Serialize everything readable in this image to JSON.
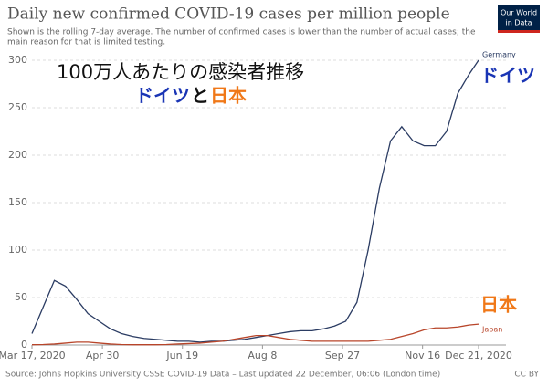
{
  "chart_data": {
    "type": "line",
    "title": "Daily new confirmed COVID-19 cases per million people",
    "subtitle": [
      "Shown is the rolling 7-day average. The number of confirmed cases is lower than the number of actual cases; the",
      "main reason for that is limited testing."
    ],
    "logo": [
      "Our World",
      "in Data"
    ],
    "source": "Source: Johns Hopkins University CSSE COVID-19 Data – Last updated 22 December, 06:06 (London time)",
    "license": "CC BY",
    "annotation_title": "100万人あたりの感染者推移",
    "annotation_subtitle": [
      {
        "text": "ドイツ",
        "color": "#1a35b5"
      },
      {
        "text": "と",
        "color": "#111111"
      },
      {
        "text": "日本",
        "color": "#f07818"
      }
    ],
    "x": [
      0,
      7,
      14,
      21,
      28,
      35,
      42,
      49,
      56,
      63,
      70,
      77,
      84,
      91,
      98,
      105,
      112,
      119,
      126,
      133,
      140,
      147,
      154,
      161,
      168,
      175,
      182,
      189,
      196,
      203,
      210,
      217,
      224,
      231,
      238,
      245,
      252,
      259,
      266,
      273,
      279
    ],
    "xlim": [
      0,
      279
    ],
    "xticks": [
      {
        "value": 0,
        "label": "Mar 17, 2020"
      },
      {
        "value": 44,
        "label": "Apr 30"
      },
      {
        "value": 94,
        "label": "Jun 19"
      },
      {
        "value": 144,
        "label": "Aug 8"
      },
      {
        "value": 194,
        "label": "Sep 27"
      },
      {
        "value": 244,
        "label": "Nov 16"
      },
      {
        "value": 279,
        "label": "Dec 21, 2020"
      }
    ],
    "ylim": [
      0,
      300
    ],
    "yticks": [
      0,
      50,
      100,
      150,
      200,
      250,
      300
    ],
    "grid": true,
    "series": [
      {
        "name": "Germany",
        "note": "ドイツ",
        "color": "#2b3c63",
        "note_color": "#1a35b5",
        "values": [
          12,
          40,
          68,
          62,
          48,
          33,
          25,
          17,
          12,
          9,
          7,
          6,
          5,
          4,
          4,
          3,
          4,
          4,
          5,
          6,
          8,
          10,
          12,
          14,
          15,
          15,
          17,
          20,
          25,
          45,
          100,
          165,
          215,
          230,
          215,
          210,
          210,
          225,
          265,
          285,
          300
        ]
      },
      {
        "name": "Japan",
        "note": "日本",
        "color": "#b8452a",
        "note_color": "#f07818",
        "values": [
          0.3,
          0.5,
          1,
          2,
          3,
          3,
          2,
          1,
          0.5,
          0.3,
          0.3,
          0.3,
          0.5,
          1,
          1.5,
          2,
          3,
          4,
          6,
          8,
          10,
          10,
          8,
          6,
          5,
          4,
          4,
          4,
          4,
          4,
          4,
          5,
          6,
          9,
          12,
          16,
          18,
          18,
          19,
          21,
          22
        ]
      }
    ]
  }
}
